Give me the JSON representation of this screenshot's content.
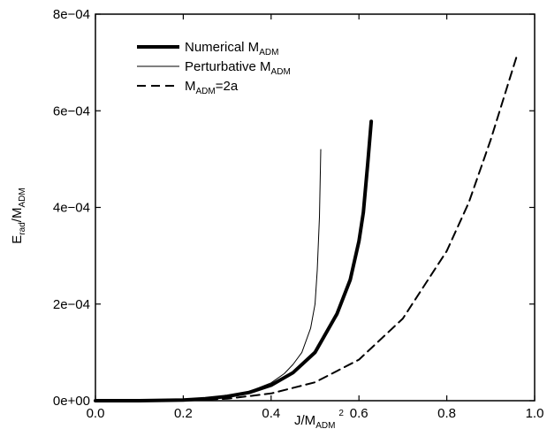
{
  "chart_data": {
    "type": "line",
    "xlabel": {
      "main": "J/M",
      "sub": "ADM",
      "sup": "2"
    },
    "ylabel": {
      "main": "E",
      "sub": "rad",
      "tail": "/M",
      "sub2": "ADM"
    },
    "xlim": [
      0,
      1
    ],
    "ylim": [
      0,
      0.0008
    ],
    "x_ticks": [
      {
        "v": 0.0,
        "label": "0.0"
      },
      {
        "v": 0.2,
        "label": "0.2"
      },
      {
        "v": 0.4,
        "label": "0.4"
      },
      {
        "v": 0.6,
        "label": "0.6"
      },
      {
        "v": 0.8,
        "label": "0.8"
      },
      {
        "v": 1.0,
        "label": "1.0"
      }
    ],
    "y_ticks": [
      {
        "v": 0,
        "label": "0e+00"
      },
      {
        "v": 0.0002,
        "label": "2e−04"
      },
      {
        "v": 0.0004,
        "label": "4e−04"
      },
      {
        "v": 0.0006,
        "label": "6e−04"
      },
      {
        "v": 0.0008,
        "label": "8e−04"
      }
    ],
    "grid": false,
    "legend_position": "top-left",
    "series": [
      {
        "id": "numerical",
        "style": "thick-solid",
        "legend": {
          "main": "Numerical M",
          "sub": "ADM",
          "tail": ""
        },
        "x": [
          0.0,
          0.1,
          0.2,
          0.25,
          0.3,
          0.35,
          0.4,
          0.45,
          0.5,
          0.55,
          0.58,
          0.6,
          0.61,
          0.62,
          0.628
        ],
        "y": [
          0.0,
          0.0,
          1.5e-06,
          4e-06,
          9e-06,
          1.7e-05,
          3.2e-05,
          5.8e-05,
          0.0001,
          0.00018,
          0.00025,
          0.00033,
          0.00039,
          0.00049,
          0.000578
        ]
      },
      {
        "id": "perturbative",
        "style": "thin-solid",
        "legend": {
          "main": "Perturbative M",
          "sub": "ADM",
          "tail": ""
        },
        "x": [
          0.0,
          0.1,
          0.2,
          0.25,
          0.3,
          0.35,
          0.4,
          0.43,
          0.45,
          0.47,
          0.49,
          0.5,
          0.505,
          0.51,
          0.513
        ],
        "y": [
          0.0,
          0.0,
          1.5e-06,
          4e-06,
          1e-05,
          1.9e-05,
          3.7e-05,
          5.6e-05,
          7.5e-05,
          0.0001,
          0.00015,
          0.0002,
          0.00027,
          0.00038,
          0.00052
        ]
      },
      {
        "id": "adm2a",
        "style": "dashed",
        "legend": {
          "main": "M",
          "sub": "ADM",
          "tail": "=2a"
        },
        "x": [
          0.0,
          0.2,
          0.3,
          0.4,
          0.5,
          0.6,
          0.7,
          0.8,
          0.85,
          0.9,
          0.96
        ],
        "y": [
          0.0,
          5e-07,
          4e-06,
          1.5e-05,
          3.8e-05,
          8.5e-05,
          0.00017,
          0.00031,
          0.00041,
          0.00054,
          0.000715
        ]
      }
    ]
  }
}
